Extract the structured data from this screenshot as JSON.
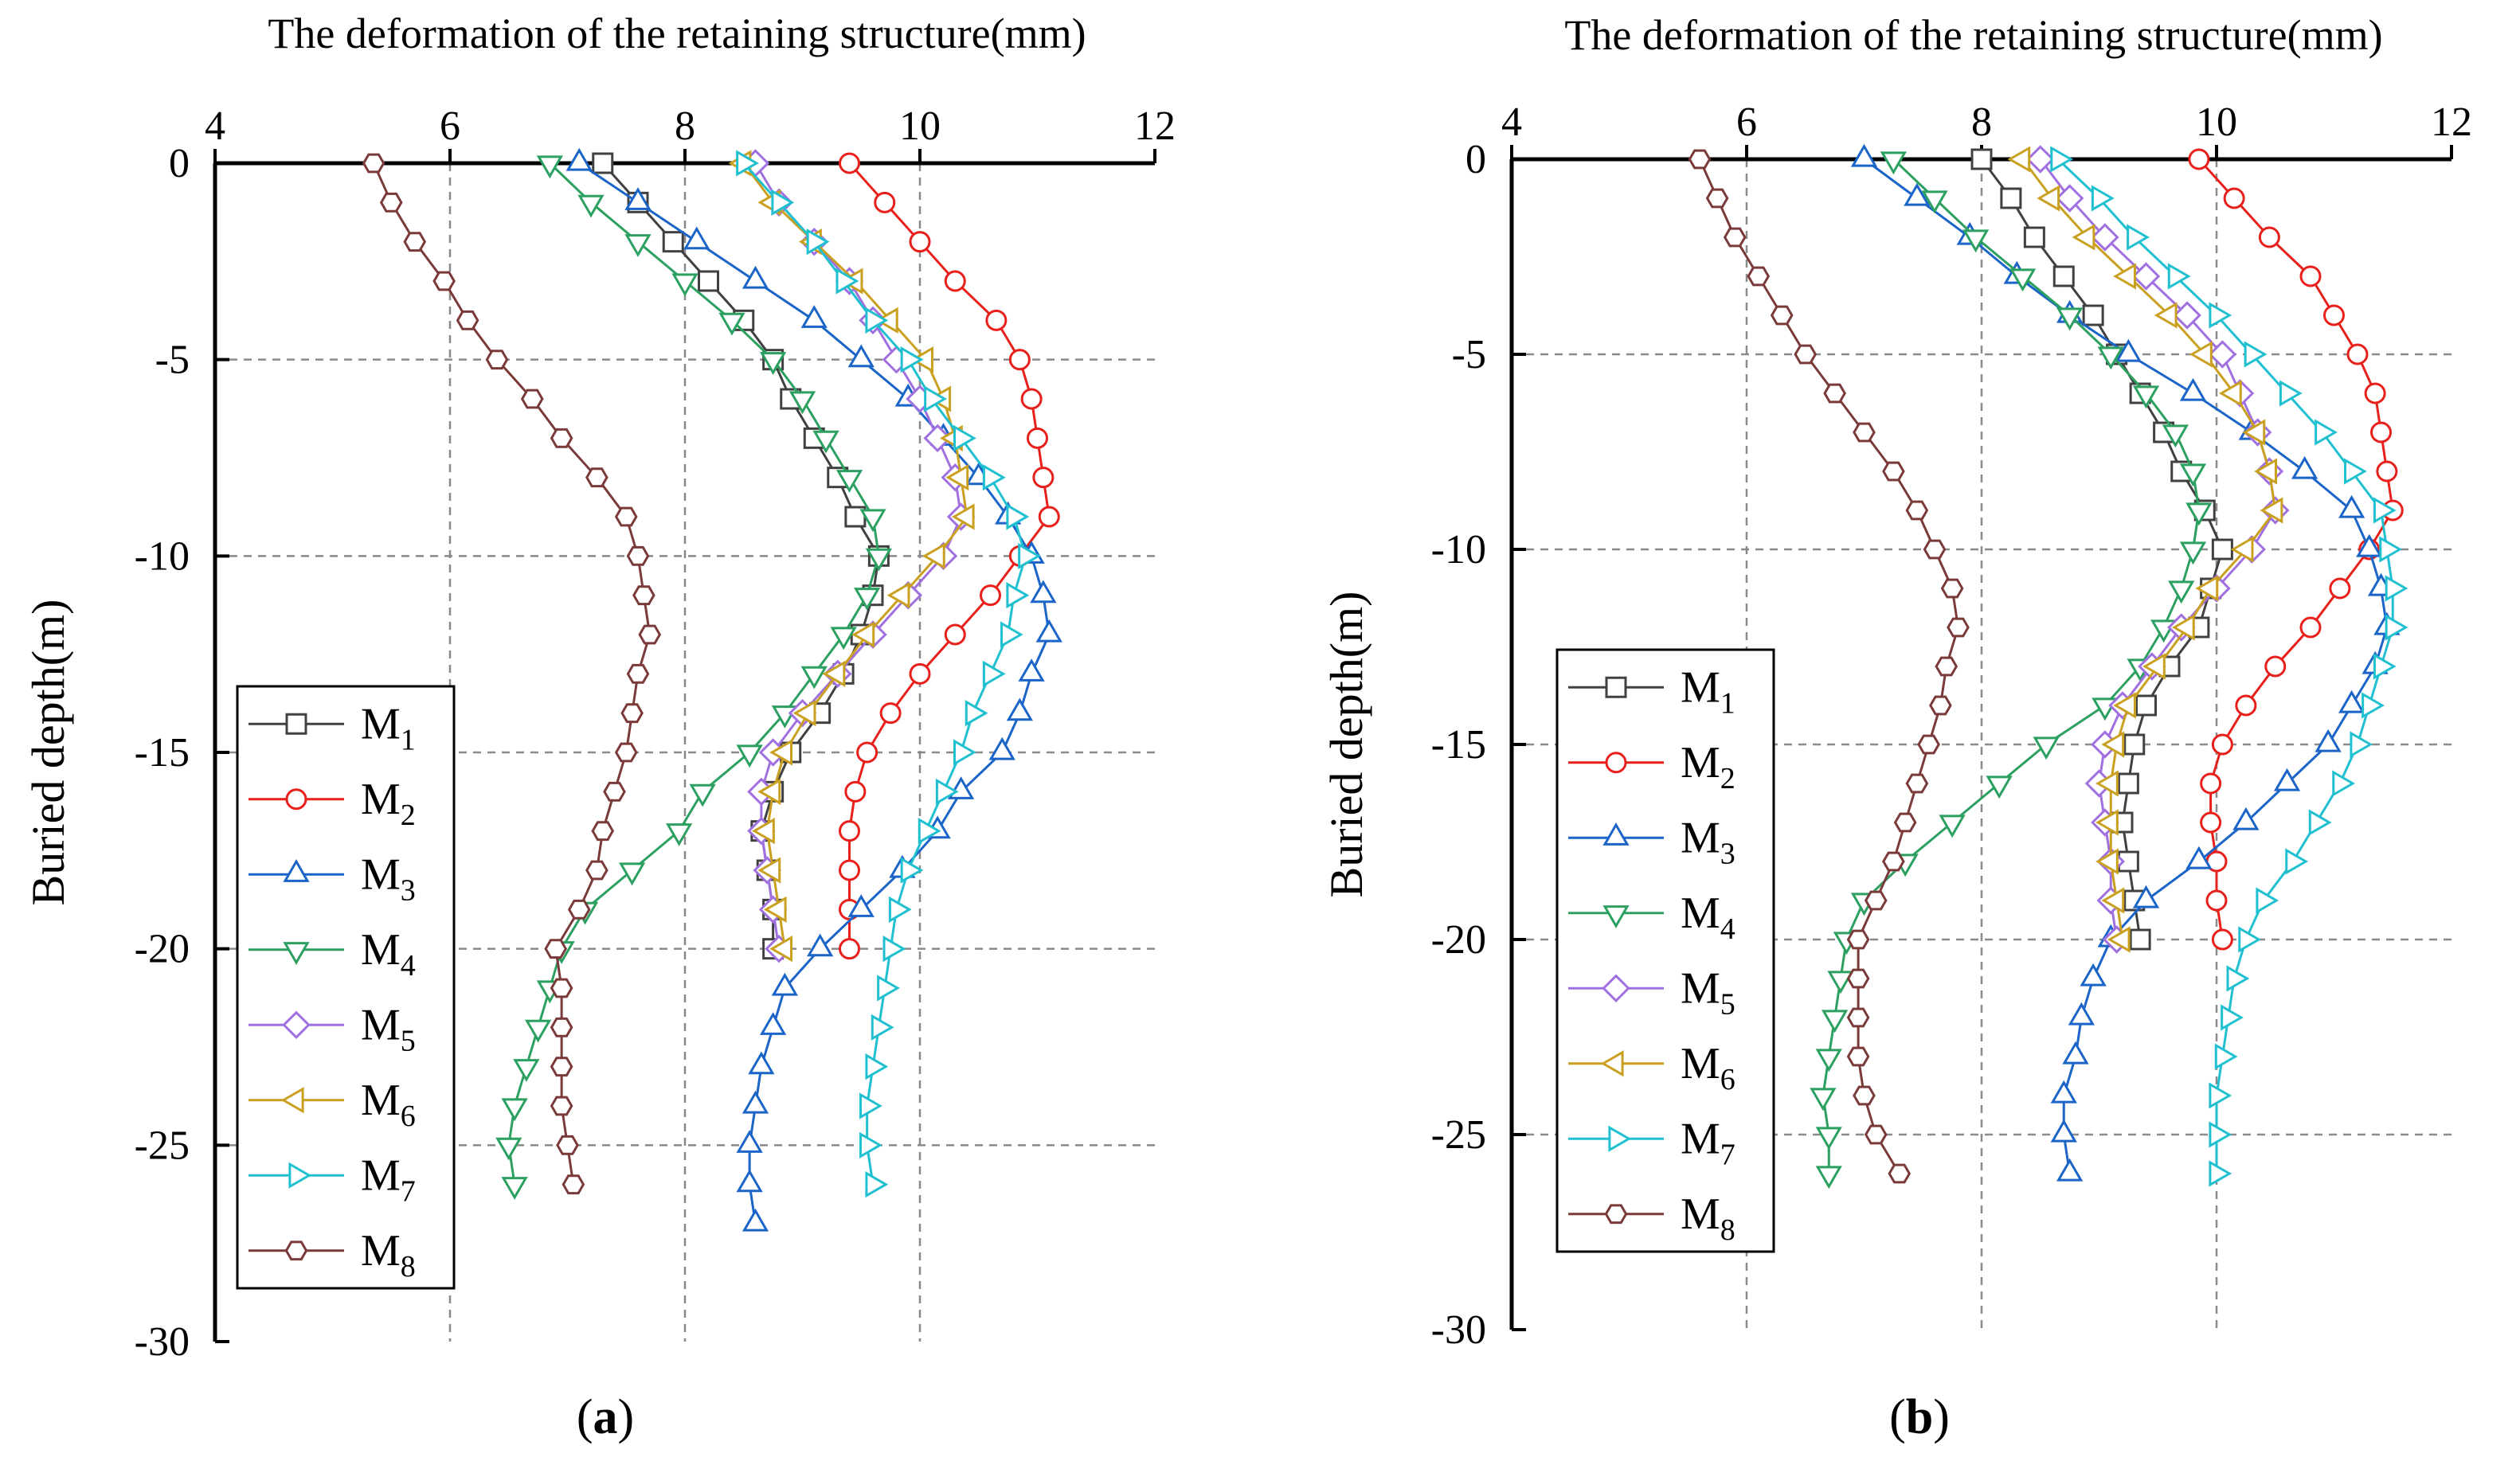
{
  "chart_data": [
    {
      "type": "line",
      "panel_label": "a",
      "title": "",
      "xlabel": "The deformation of the retaining structure(mm)",
      "ylabel": "Buried depth(m)",
      "xlim": [
        4,
        12
      ],
      "ylim": [
        -30,
        0
      ],
      "x_ticks": [
        "4",
        "6",
        "8",
        "10",
        "12"
      ],
      "y_ticks": [
        "0",
        "-5",
        "-10",
        "-15",
        "-20",
        "-25",
        "-30"
      ],
      "grid": "dashed",
      "legend_position": "bottom-left",
      "series": [
        {
          "name": "M",
          "sub": "1",
          "marker": "square",
          "color": "#404040",
          "x": [
            7.3,
            7.6,
            7.9,
            8.2,
            8.5,
            8.75,
            8.9,
            9.1,
            9.3,
            9.45,
            9.65,
            9.6,
            9.5,
            9.35,
            9.15,
            8.9,
            8.75,
            8.65,
            8.7,
            8.75,
            8.75
          ],
          "y": [
            0,
            -1,
            -2,
            -3,
            -4,
            -5,
            -6,
            -7,
            -8,
            -9,
            -10,
            -11,
            -12,
            -13,
            -14,
            -15,
            -16,
            -17,
            -18,
            -19,
            -20
          ]
        },
        {
          "name": "M",
          "sub": "2",
          "marker": "circle",
          "color": "#e8201c",
          "x": [
            9.4,
            9.7,
            10.0,
            10.3,
            10.65,
            10.85,
            10.95,
            11.0,
            11.05,
            11.1,
            10.85,
            10.6,
            10.3,
            10.0,
            9.75,
            9.55,
            9.45,
            9.4,
            9.4,
            9.4,
            9.4
          ],
          "y": [
            0,
            -1,
            -2,
            -3,
            -4,
            -5,
            -6,
            -7,
            -8,
            -9,
            -10,
            -11,
            -12,
            -13,
            -14,
            -15,
            -16,
            -17,
            -18,
            -19,
            -20
          ]
        },
        {
          "name": "M",
          "sub": "3",
          "marker": "triangle-up",
          "color": "#1b64c8",
          "x": [
            7.1,
            7.6,
            8.1,
            8.6,
            9.1,
            9.5,
            9.9,
            10.2,
            10.5,
            10.75,
            10.95,
            11.05,
            11.1,
            10.95,
            10.85,
            10.7,
            10.35,
            10.15,
            9.85,
            9.5,
            9.15,
            8.85,
            8.75,
            8.65,
            8.6,
            8.55,
            8.55,
            8.6
          ],
          "y": [
            0,
            -1,
            -2,
            -3,
            -4,
            -5,
            -6,
            -7,
            -8,
            -9,
            -10,
            -11,
            -12,
            -13,
            -14,
            -15,
            -16,
            -17,
            -18,
            -19,
            -20,
            -21,
            -22,
            -23,
            -24,
            -25,
            -26,
            -27
          ]
        },
        {
          "name": "M",
          "sub": "4",
          "marker": "triangle-down",
          "color": "#2ca060",
          "x": [
            6.85,
            7.2,
            7.6,
            8.0,
            8.4,
            8.75,
            9.0,
            9.2,
            9.4,
            9.6,
            9.65,
            9.55,
            9.35,
            9.1,
            8.85,
            8.55,
            8.15,
            7.95,
            7.55,
            7.15,
            6.95,
            6.85,
            6.75,
            6.65,
            6.55,
            6.5,
            6.55
          ],
          "y": [
            0,
            -1,
            -2,
            -3,
            -4,
            -5,
            -6,
            -7,
            -8,
            -9,
            -10,
            -11,
            -12,
            -13,
            -14,
            -15,
            -16,
            -17,
            -18,
            -19,
            -20,
            -21,
            -22,
            -23,
            -24,
            -25,
            -26
          ]
        },
        {
          "name": "M",
          "sub": "5",
          "marker": "diamond",
          "color": "#a070e0",
          "x": [
            8.6,
            8.8,
            9.1,
            9.4,
            9.6,
            9.8,
            10.0,
            10.15,
            10.3,
            10.35,
            10.2,
            9.9,
            9.6,
            9.3,
            9.0,
            8.75,
            8.65,
            8.65,
            8.7,
            8.75,
            8.8
          ],
          "y": [
            0,
            -1,
            -2,
            -3,
            -4,
            -5,
            -6,
            -7,
            -8,
            -9,
            -10,
            -11,
            -12,
            -13,
            -14,
            -15,
            -16,
            -17,
            -18,
            -19,
            -20
          ]
        },
        {
          "name": "M",
          "sub": "6",
          "marker": "triangle-left",
          "color": "#c9a020",
          "x": [
            8.5,
            8.75,
            9.1,
            9.45,
            9.75,
            10.05,
            10.2,
            10.3,
            10.35,
            10.4,
            10.15,
            9.85,
            9.55,
            9.3,
            9.05,
            8.85,
            8.75,
            8.7,
            8.75,
            8.8,
            8.85
          ],
          "y": [
            0,
            -1,
            -2,
            -3,
            -4,
            -5,
            -6,
            -7,
            -8,
            -9,
            -10,
            -11,
            -12,
            -13,
            -14,
            -15,
            -16,
            -17,
            -18,
            -19,
            -20
          ]
        },
        {
          "name": "M",
          "sub": "7",
          "marker": "triangle-right",
          "color": "#20c0d0",
          "x": [
            8.5,
            8.8,
            9.1,
            9.35,
            9.6,
            9.9,
            10.1,
            10.35,
            10.6,
            10.8,
            10.9,
            10.8,
            10.75,
            10.6,
            10.45,
            10.35,
            10.2,
            10.05,
            9.9,
            9.8,
            9.75,
            9.7,
            9.65,
            9.6,
            9.55,
            9.55,
            9.6
          ],
          "y": [
            0,
            -1,
            -2,
            -3,
            -4,
            -5,
            -6,
            -7,
            -8,
            -9,
            -10,
            -11,
            -12,
            -13,
            -14,
            -15,
            -16,
            -17,
            -18,
            -19,
            -20,
            -21,
            -22,
            -23,
            -24,
            -25,
            -26
          ]
        },
        {
          "name": "M",
          "sub": "8",
          "marker": "hexagon",
          "color": "#7a3a3a",
          "x": [
            5.35,
            5.5,
            5.7,
            5.95,
            6.15,
            6.4,
            6.7,
            6.95,
            7.25,
            7.5,
            7.6,
            7.65,
            7.7,
            7.6,
            7.55,
            7.5,
            7.4,
            7.3,
            7.25,
            7.1,
            6.9,
            6.95,
            6.95,
            6.95,
            6.95,
            7.0,
            7.05
          ],
          "y": [
            0,
            -1,
            -2,
            -3,
            -4,
            -5,
            -6,
            -7,
            -8,
            -9,
            -10,
            -11,
            -12,
            -13,
            -14,
            -15,
            -16,
            -17,
            -18,
            -19,
            -20,
            -21,
            -22,
            -23,
            -24,
            -25,
            -26
          ]
        }
      ]
    },
    {
      "type": "line",
      "panel_label": "b",
      "title": "",
      "xlabel": "The deformation of the retaining structure(mm)",
      "ylabel": "Buried depth(m)",
      "xlim": [
        4,
        12
      ],
      "ylim": [
        -30,
        0
      ],
      "x_ticks": [
        "4",
        "6",
        "8",
        "10",
        "12"
      ],
      "y_ticks": [
        "0",
        "-5",
        "-10",
        "-15",
        "-20",
        "-25",
        "-30"
      ],
      "grid": "dashed",
      "legend_position": "bottom-left",
      "series": [
        {
          "name": "M",
          "sub": "1",
          "marker": "square",
          "color": "#404040",
          "x": [
            8.0,
            8.25,
            8.45,
            8.7,
            8.95,
            9.15,
            9.35,
            9.55,
            9.7,
            9.9,
            10.05,
            9.95,
            9.85,
            9.6,
            9.4,
            9.3,
            9.25,
            9.2,
            9.25,
            9.3,
            9.35
          ],
          "y": [
            0,
            -1,
            -2,
            -3,
            -4,
            -5,
            -6,
            -7,
            -8,
            -9,
            -10,
            -11,
            -12,
            -13,
            -14,
            -15,
            -16,
            -17,
            -18,
            -19,
            -20
          ]
        },
        {
          "name": "M",
          "sub": "2",
          "marker": "circle",
          "color": "#e8201c",
          "x": [
            9.85,
            10.15,
            10.45,
            10.8,
            11.0,
            11.2,
            11.35,
            11.4,
            11.45,
            11.5,
            11.3,
            11.05,
            10.8,
            10.5,
            10.25,
            10.05,
            9.95,
            9.95,
            10.0,
            10.0,
            10.05
          ],
          "y": [
            0,
            -1,
            -2,
            -3,
            -4,
            -5,
            -6,
            -7,
            -8,
            -9,
            -10,
            -11,
            -12,
            -13,
            -14,
            -15,
            -16,
            -17,
            -18,
            -19,
            -20
          ]
        },
        {
          "name": "M",
          "sub": "3",
          "marker": "triangle-up",
          "color": "#1b64c8",
          "x": [
            7.0,
            7.45,
            7.9,
            8.3,
            8.75,
            9.25,
            9.8,
            10.3,
            10.75,
            11.15,
            11.3,
            11.4,
            11.45,
            11.35,
            11.15,
            10.95,
            10.6,
            10.25,
            9.85,
            9.4,
            9.1,
            8.95,
            8.85,
            8.8,
            8.7,
            8.7,
            8.75
          ],
          "y": [
            0,
            -1,
            -2,
            -3,
            -4,
            -5,
            -6,
            -7,
            -8,
            -9,
            -10,
            -11,
            -12,
            -13,
            -14,
            -15,
            -16,
            -17,
            -18,
            -19,
            -20,
            -21,
            -22,
            -23,
            -24,
            -25,
            -26
          ]
        },
        {
          "name": "M",
          "sub": "4",
          "marker": "triangle-down",
          "color": "#2ca060",
          "x": [
            7.25,
            7.6,
            7.95,
            8.35,
            8.75,
            9.1,
            9.4,
            9.65,
            9.8,
            9.85,
            9.8,
            9.7,
            9.55,
            9.35,
            9.05,
            8.55,
            8.15,
            7.75,
            7.35,
            7.0,
            6.85,
            6.8,
            6.75,
            6.7,
            6.65,
            6.7,
            6.7
          ],
          "y": [
            0,
            -1,
            -2,
            -3,
            -4,
            -5,
            -6,
            -7,
            -8,
            -9,
            -10,
            -11,
            -12,
            -13,
            -14,
            -15,
            -16,
            -17,
            -18,
            -19,
            -20,
            -21,
            -22,
            -23,
            -24,
            -25,
            -26
          ]
        },
        {
          "name": "M",
          "sub": "5",
          "marker": "diamond",
          "color": "#a070e0",
          "x": [
            8.5,
            8.75,
            9.05,
            9.4,
            9.75,
            10.05,
            10.2,
            10.35,
            10.45,
            10.5,
            10.3,
            10.0,
            9.7,
            9.45,
            9.2,
            9.05,
            9.0,
            9.05,
            9.1,
            9.1,
            9.15
          ],
          "y": [
            0,
            -1,
            -2,
            -3,
            -4,
            -5,
            -6,
            -7,
            -8,
            -9,
            -10,
            -11,
            -12,
            -13,
            -14,
            -15,
            -16,
            -17,
            -18,
            -19,
            -20
          ]
        },
        {
          "name": "M",
          "sub": "6",
          "marker": "triangle-left",
          "color": "#c9a020",
          "x": [
            8.35,
            8.6,
            8.9,
            9.25,
            9.6,
            9.9,
            10.15,
            10.35,
            10.45,
            10.5,
            10.25,
            9.95,
            9.75,
            9.5,
            9.25,
            9.15,
            9.1,
            9.1,
            9.1,
            9.15,
            9.2
          ],
          "y": [
            0,
            -1,
            -2,
            -3,
            -4,
            -5,
            -6,
            -7,
            -8,
            -9,
            -10,
            -11,
            -12,
            -13,
            -14,
            -15,
            -16,
            -17,
            -18,
            -19,
            -20
          ]
        },
        {
          "name": "M",
          "sub": "7",
          "marker": "triangle-right",
          "color": "#20c0d0",
          "x": [
            8.65,
            9.0,
            9.3,
            9.65,
            10.0,
            10.3,
            10.6,
            10.9,
            11.15,
            11.4,
            11.45,
            11.5,
            11.5,
            11.4,
            11.3,
            11.2,
            11.05,
            10.85,
            10.65,
            10.4,
            10.25,
            10.15,
            10.1,
            10.05,
            10.0,
            10.0,
            10.0
          ],
          "y": [
            0,
            -1,
            -2,
            -3,
            -4,
            -5,
            -6,
            -7,
            -8,
            -9,
            -10,
            -11,
            -12,
            -13,
            -14,
            -15,
            -16,
            -17,
            -18,
            -19,
            -20,
            -21,
            -22,
            -23,
            -24,
            -25,
            -26
          ]
        },
        {
          "name": "M",
          "sub": "8",
          "marker": "hexagon",
          "color": "#7a3a3a",
          "x": [
            5.6,
            5.75,
            5.9,
            6.1,
            6.3,
            6.5,
            6.75,
            7.0,
            7.25,
            7.45,
            7.6,
            7.75,
            7.8,
            7.7,
            7.65,
            7.55,
            7.45,
            7.35,
            7.25,
            7.1,
            6.95,
            6.95,
            6.95,
            6.95,
            7.0,
            7.1,
            7.3
          ],
          "y": [
            0,
            -1,
            -2,
            -3,
            -4,
            -5,
            -6,
            -7,
            -8,
            -9,
            -10,
            -11,
            -12,
            -13,
            -14,
            -15,
            -16,
            -17,
            -18,
            -19,
            -20,
            -21,
            -22,
            -23,
            -24,
            -25,
            -26
          ]
        }
      ]
    }
  ]
}
